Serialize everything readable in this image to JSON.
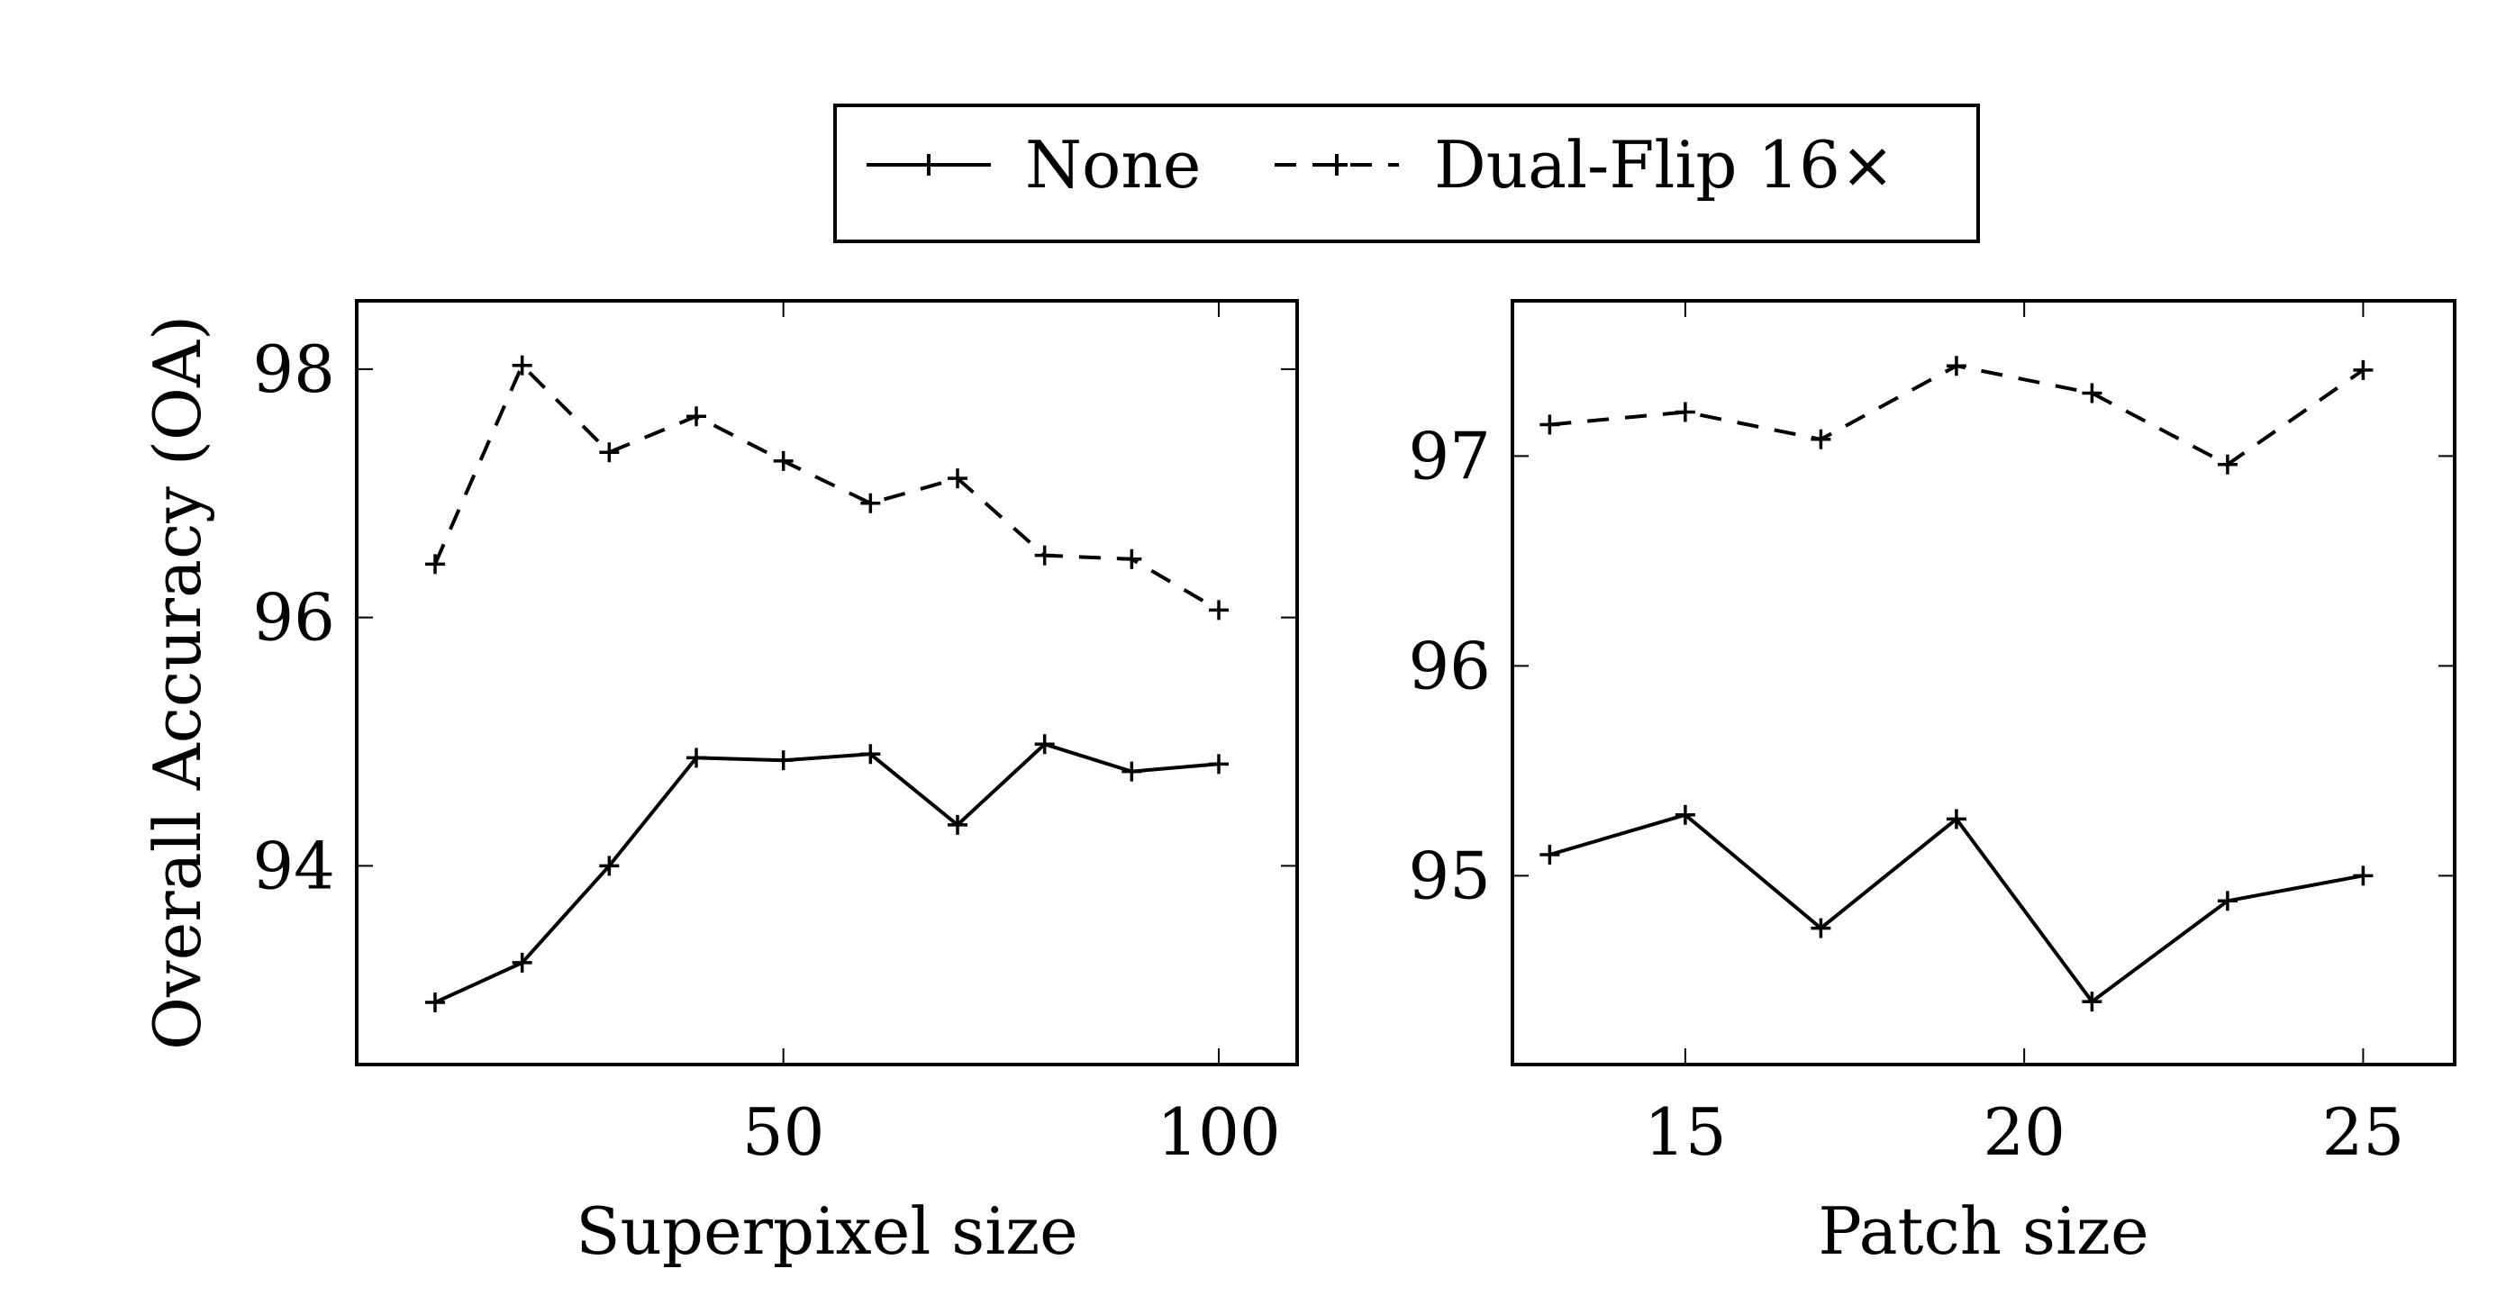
{
  "legend": {
    "entries": [
      {
        "label": "None",
        "style": "solid"
      },
      {
        "label": "Dual-Flip 16×",
        "style": "dashed"
      }
    ]
  },
  "chart_data": [
    {
      "type": "line",
      "title": "",
      "xlabel": "Superpixel size",
      "ylabel": "Overall Accuracy (OA)",
      "xlim": [
        1,
        109
      ],
      "ylim": [
        92.4,
        98.55
      ],
      "xticks": [
        50,
        100
      ],
      "yticks": [
        94,
        96,
        98
      ],
      "x": [
        10,
        20,
        30,
        40,
        50,
        60,
        70,
        80,
        90,
        100
      ],
      "series": [
        {
          "name": "None",
          "style": "solid",
          "values": [
            92.9,
            93.22,
            94.0,
            94.87,
            94.85,
            94.9,
            94.33,
            94.98,
            94.76,
            94.82
          ]
        },
        {
          "name": "Dual-Flip 16×",
          "style": "dashed",
          "values": [
            96.43,
            98.03,
            97.33,
            97.62,
            97.26,
            96.92,
            97.12,
            96.5,
            96.47,
            96.06
          ]
        }
      ],
      "grid": false,
      "legend_position": "top-center"
    },
    {
      "type": "line",
      "title": "",
      "xlabel": "Patch size",
      "ylabel": "",
      "xlim": [
        12.45,
        26.35
      ],
      "ylim": [
        94.1,
        97.74
      ],
      "xticks": [
        15,
        20,
        25
      ],
      "yticks": [
        95,
        96,
        97
      ],
      "x": [
        13,
        15,
        17,
        19,
        21,
        23,
        25
      ],
      "series": [
        {
          "name": "None",
          "style": "solid",
          "values": [
            95.1,
            95.29,
            94.75,
            95.27,
            94.4,
            94.88,
            95.0
          ]
        },
        {
          "name": "Dual-Flip 16×",
          "style": "dashed",
          "values": [
            97.15,
            97.21,
            97.08,
            97.43,
            97.3,
            96.96,
            97.41
          ]
        }
      ],
      "grid": false,
      "legend_position": "top-center"
    }
  ]
}
